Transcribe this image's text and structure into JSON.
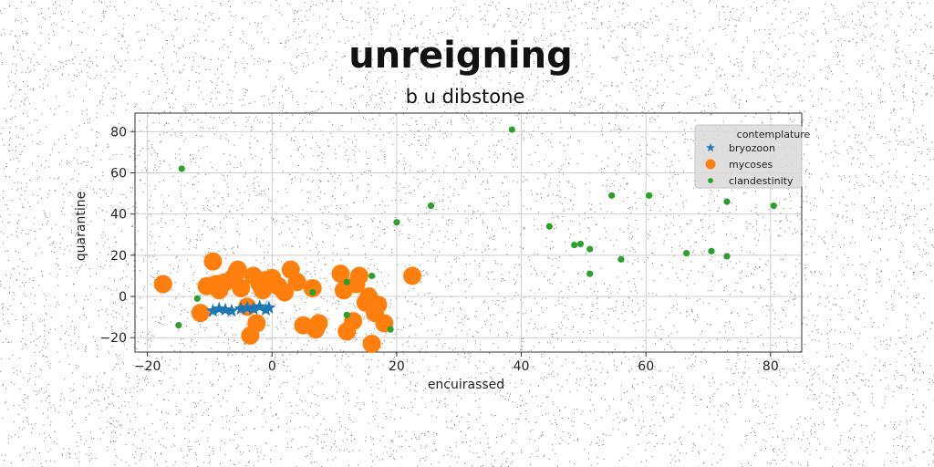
{
  "chart_data": {
    "type": "scatter",
    "suptitle": "unreigning",
    "title": "b u dibstone",
    "xlabel": "encuirassed",
    "ylabel": "quarantine",
    "xlim": [
      -22,
      85
    ],
    "ylim": [
      -27,
      89
    ],
    "xticks": [
      -20,
      0,
      20,
      40,
      60,
      80
    ],
    "yticks": [
      -20,
      0,
      20,
      40,
      60,
      80
    ],
    "xtick_labels": [
      "−20",
      "0",
      "20",
      "40",
      "60",
      "80"
    ],
    "ytick_labels": [
      "−20",
      "0",
      "20",
      "40",
      "60",
      "80"
    ],
    "grid": true,
    "legend": {
      "title": "contemplature",
      "placement": "top-right"
    },
    "series": [
      {
        "name": "bryozoon",
        "marker": "star",
        "color": "#1f77b4",
        "points": [
          [
            -9.5,
            -7
          ],
          [
            -8.5,
            -6
          ],
          [
            -7.5,
            -6.5
          ],
          [
            -6.5,
            -7
          ],
          [
            -5,
            -6
          ],
          [
            -4,
            -5.5
          ],
          [
            -3,
            -6
          ],
          [
            -2,
            -5
          ],
          [
            -1,
            -6.5
          ],
          [
            -0.5,
            -5.5
          ]
        ]
      },
      {
        "name": "mycoses",
        "marker": "circle",
        "color": "#ff7f0e",
        "points": [
          [
            -17.5,
            6
          ],
          [
            -11.5,
            -8
          ],
          [
            -10.5,
            5
          ],
          [
            -9.5,
            17
          ],
          [
            -9,
            6
          ],
          [
            -8.5,
            3
          ],
          [
            -7.5,
            7
          ],
          [
            -6,
            10
          ],
          [
            -5.5,
            13
          ],
          [
            -5,
            4
          ],
          [
            -4,
            -5
          ],
          [
            -3.5,
            -19
          ],
          [
            -3,
            10
          ],
          [
            -2.5,
            -13
          ],
          [
            -2,
            6
          ],
          [
            -1.5,
            3
          ],
          [
            -1,
            8
          ],
          [
            0,
            9
          ],
          [
            1,
            5
          ],
          [
            2,
            2
          ],
          [
            3,
            13
          ],
          [
            4,
            7
          ],
          [
            5,
            -14
          ],
          [
            6.5,
            4
          ],
          [
            7,
            -16
          ],
          [
            7.5,
            -13
          ],
          [
            11,
            11
          ],
          [
            11.5,
            3
          ],
          [
            12,
            -17
          ],
          [
            13,
            -12
          ],
          [
            13.5,
            6
          ],
          [
            14,
            10
          ],
          [
            15,
            -3
          ],
          [
            15.5,
            0
          ],
          [
            16,
            -23
          ],
          [
            16.5,
            -8
          ],
          [
            17,
            -4
          ],
          [
            18,
            -13
          ],
          [
            22.5,
            10
          ]
        ]
      },
      {
        "name": "clandestinity",
        "marker": "point",
        "color": "#2ca02c",
        "points": [
          [
            -14.5,
            62
          ],
          [
            -15,
            -14
          ],
          [
            -12,
            -1
          ],
          [
            6.5,
            2
          ],
          [
            12,
            -9
          ],
          [
            12,
            7
          ],
          [
            16,
            10
          ],
          [
            19,
            -16
          ],
          [
            20,
            36
          ],
          [
            25.5,
            44
          ],
          [
            38.5,
            81
          ],
          [
            44.5,
            34
          ],
          [
            48.5,
            25
          ],
          [
            49.5,
            25.5
          ],
          [
            51,
            23
          ],
          [
            51,
            11
          ],
          [
            54.5,
            49
          ],
          [
            56,
            18
          ],
          [
            60.5,
            49
          ],
          [
            66.5,
            21
          ],
          [
            70.5,
            22
          ],
          [
            73,
            46
          ],
          [
            73,
            19.5
          ],
          [
            80.5,
            44
          ]
        ]
      }
    ]
  }
}
